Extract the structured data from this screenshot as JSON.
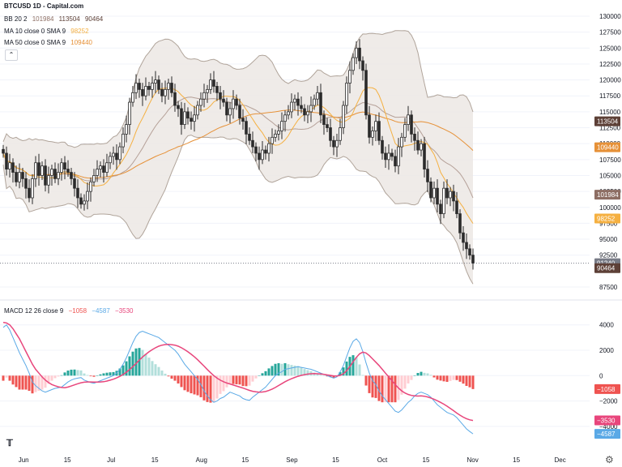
{
  "header": {
    "title": "BTCUSD 1D - Capital.com",
    "bb": {
      "label": "BB 20 2",
      "basis": "101984",
      "upper": "113504",
      "lower": "90464"
    },
    "ma10": {
      "label": "MA 10 close 0 SMA 9",
      "value": "98252"
    },
    "ma50": {
      "label": "MA 50 close 0 SMA 9",
      "value": "109440"
    },
    "macd": {
      "label": "MACD 12 26 close 9",
      "hist": "−1058",
      "macd": "−4587",
      "signal": "−3530"
    }
  },
  "colors": {
    "up": "#ffffff",
    "down": "#2a2a2a",
    "wick": "#2a2a2a",
    "bbBand": "#b0a49a",
    "bbFill": "#ece8e4",
    "bbBasis": "#8d6e63",
    "ma10": "#f5b041",
    "ma50": "#e69138",
    "macdLine": "#5aa9e6",
    "signalLine": "#e8467c",
    "histPosStrong": "#26a69a",
    "histPosWeak": "#b2dfdb",
    "histNegStrong": "#ef5350",
    "histNegWeak": "#ffcdd2",
    "grid": "#f0f3fa"
  },
  "chart_data": {
    "type": "candlestick",
    "symbol": "BTCUSD",
    "interval": "1D",
    "ylim": [
      87500,
      130000
    ],
    "y_ticks": [
      "130000",
      "127500",
      "125000",
      "122500",
      "120000",
      "117500",
      "115000",
      "112500",
      "110000",
      "107500",
      "105000",
      "102500",
      "100000",
      "97500",
      "95000",
      "92500",
      "87500"
    ],
    "last_price": "91240",
    "price_labels": [
      {
        "text": "113504",
        "value": 113504,
        "color": "#5d4037"
      },
      {
        "text": "109440",
        "value": 109440,
        "color": "#e69138"
      },
      {
        "text": "101984",
        "value": 101984,
        "color": "#8d6e63"
      },
      {
        "text": "98252",
        "value": 98252,
        "color": "#f5b041"
      },
      {
        "text": "91240",
        "value": 91240,
        "color": "#787b86"
      },
      {
        "text": "90464",
        "value": 90464,
        "color": "#5d4037"
      }
    ],
    "x_ticks": [
      "Jun",
      "15",
      "Jul",
      "15",
      "Aug",
      "15",
      "Sep",
      "15",
      "Oct",
      "15",
      "Nov",
      "15",
      "Dec"
    ],
    "closes": [
      108500,
      106000,
      107000,
      105500,
      104000,
      105500,
      104500,
      103000,
      101500,
      104500,
      107000,
      105000,
      106500,
      103500,
      105000,
      106000,
      104500,
      105500,
      107000,
      106000,
      105500,
      104500,
      103000,
      101500,
      100500,
      101000,
      102500,
      104000,
      105000,
      106000,
      106500,
      105500,
      107000,
      108000,
      108500,
      107500,
      109500,
      111500,
      113000,
      116500,
      118000,
      119500,
      118500,
      117500,
      119000,
      118500,
      119500,
      120000,
      118500,
      117500,
      118500,
      119500,
      118000,
      116000,
      115500,
      113000,
      115000,
      114000,
      113500,
      114500,
      116000,
      117000,
      118000,
      118500,
      120000,
      119000,
      118000,
      117000,
      116500,
      114500,
      115500,
      117000,
      116000,
      114000,
      113500,
      111500,
      110500,
      109500,
      108500,
      107500,
      109000,
      108500,
      110000,
      111000,
      111500,
      112000,
      113500,
      114500,
      115000,
      116500,
      117000,
      116000,
      115500,
      114500,
      115000,
      116000,
      117000,
      118000,
      114500,
      113000,
      112500,
      110500,
      109500,
      110500,
      112500,
      116000,
      119500,
      121500,
      123500,
      125000,
      123000,
      121500,
      114500,
      111000,
      112000,
      113500,
      110500,
      108500,
      107500,
      108500,
      108000,
      106500,
      109500,
      111000,
      113000,
      114500,
      111500,
      110500,
      109000,
      110000,
      106000,
      104000,
      101500,
      103000,
      100500,
      99000,
      103000,
      101500,
      102500,
      101000,
      99000,
      96000,
      94500,
      93500,
      92500,
      91240
    ],
    "macd": [
      3800,
      4000,
      3600,
      3000,
      2400,
      1800,
      1300,
      800,
      200,
      -500,
      -800,
      -1000,
      -1200,
      -1300,
      -1200,
      -1100,
      -1000,
      -950,
      -900,
      -700,
      -500,
      -350,
      -250,
      -200,
      -150,
      -350,
      -450,
      -550,
      -600,
      -500,
      -400,
      -300,
      -200,
      -100,
      0,
      200,
      500,
      900,
      1400,
      2000,
      2600,
      3100,
      3400,
      3500,
      3400,
      3300,
      3200,
      3100,
      3000,
      2800,
      2600,
      2400,
      2200,
      2000,
      1700,
      1300,
      900,
      600,
      300,
      0,
      -300,
      -700,
      -1200,
      -1600,
      -1900,
      -2100,
      -2000,
      -1800,
      -1700,
      -1500,
      -1300,
      -1400,
      -1500,
      -1600,
      -1800,
      -1900,
      -1950,
      -1700,
      -1500,
      -1300,
      -1100,
      -900,
      -600,
      -300,
      0,
      200,
      300,
      500,
      550,
      600,
      650,
      700,
      650,
      600,
      550,
      500,
      400,
      300,
      200,
      100,
      0,
      -100,
      -200,
      -100,
      300,
      800,
      1500,
      2200,
      2700,
      2900,
      2600,
      1900,
      1000,
      200,
      -400,
      -700,
      -1200,
      -1600,
      -1900,
      -2200,
      -2500,
      -2800,
      -2900,
      -2700,
      -2400,
      -2100,
      -1900,
      -1600,
      -1400,
      -1300,
      -1400,
      -1500,
      -1700,
      -2000,
      -2300,
      -2500,
      -2700,
      -2900,
      -3000,
      -3100,
      -3300,
      -3600,
      -3900,
      -4200,
      -4400,
      -4587
    ],
    "signal": [
      4200,
      4150,
      4000,
      3700,
      3300,
      2900,
      2400,
      1900,
      1400,
      900,
      500,
      200,
      -100,
      -350,
      -550,
      -700,
      -800,
      -880,
      -930,
      -950,
      -900,
      -820,
      -730,
      -640,
      -560,
      -520,
      -500,
      -500,
      -510,
      -510,
      -500,
      -480,
      -430,
      -360,
      -280,
      -180,
      -60,
      90,
      270,
      480,
      710,
      960,
      1220,
      1470,
      1680,
      1880,
      2050,
      2200,
      2320,
      2400,
      2450,
      2460,
      2440,
      2400,
      2320,
      2200,
      2050,
      1880,
      1690,
      1480,
      1250,
      1000,
      750,
      480,
      230,
      0,
      -200,
      -360,
      -480,
      -580,
      -660,
      -740,
      -820,
      -900,
      -980,
      -1070,
      -1160,
      -1230,
      -1280,
      -1300,
      -1290,
      -1250,
      -1170,
      -1060,
      -930,
      -780,
      -630,
      -480,
      -350,
      -240,
      -140,
      -50,
      20,
      80,
      120,
      150,
      160,
      150,
      130,
      100,
      60,
      20,
      -20,
      -30,
      20,
      150,
      390,
      720,
      1090,
      1440,
      1720,
      1850,
      1780,
      1580,
      1320,
      1060,
      800,
      500,
      190,
      -100,
      -400,
      -700,
      -980,
      -1200,
      -1370,
      -1480,
      -1560,
      -1600,
      -1610,
      -1600,
      -1620,
      -1680,
      -1760,
      -1860,
      -1980,
      -2110,
      -2250,
      -2410,
      -2580,
      -2760,
      -2950,
      -3120,
      -3270,
      -3390,
      -3480,
      -3530
    ],
    "macd_ylim": [
      -4900,
      4300
    ],
    "macd_ticks": [
      "4000",
      "2000",
      "0",
      "−2000",
      "−4000"
    ],
    "macd_value_labels": [
      {
        "text": "−1058",
        "value": -1058,
        "color": "#ef5350"
      },
      {
        "text": "−3530",
        "value": -3530,
        "color": "#e8467c"
      },
      {
        "text": "−4587",
        "value": -4587,
        "color": "#5aa9e6"
      }
    ]
  }
}
